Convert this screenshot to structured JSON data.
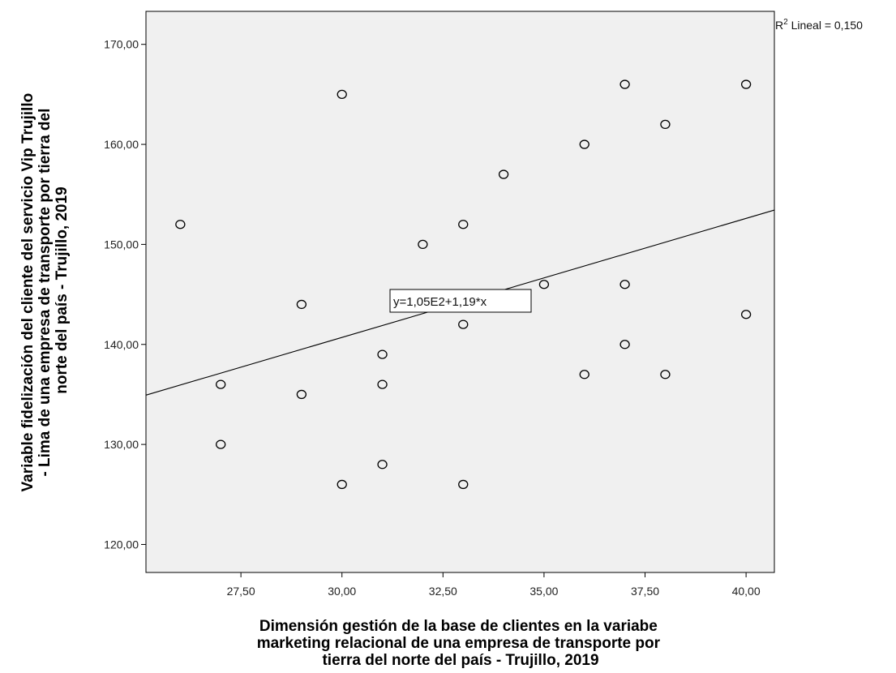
{
  "chart_data": {
    "type": "scatter",
    "xlabel": [
      "Dimensión gestión de la base de clientes en la variabe",
      "marketing relacional de una empresa de transporte por",
      "tierra del norte del país - Trujillo, 2019"
    ],
    "ylabel": [
      "Variable fidelización del cliente del servicio Vip Trujillo",
      "- Lima de una empresa de transporte por tierra del",
      "norte del país - Trujillo, 2019"
    ],
    "xlim": [
      25.15,
      40.7
    ],
    "ylim": [
      117.2,
      173.3
    ],
    "xticks": [
      27.5,
      30.0,
      32.5,
      35.0,
      37.5,
      40.0
    ],
    "xtick_labels": [
      "27,50",
      "30,00",
      "32,50",
      "35,00",
      "37,50",
      "40,00"
    ],
    "yticks": [
      120,
      130,
      140,
      150,
      160,
      170
    ],
    "ytick_labels": [
      "120,00",
      "130,00",
      "140,00",
      "150,00",
      "160,00",
      "170,00"
    ],
    "grid": false,
    "points": [
      {
        "x": 26,
        "y": 152
      },
      {
        "x": 27,
        "y": 136
      },
      {
        "x": 27,
        "y": 130
      },
      {
        "x": 29,
        "y": 144
      },
      {
        "x": 29,
        "y": 135
      },
      {
        "x": 30,
        "y": 165
      },
      {
        "x": 30,
        "y": 126
      },
      {
        "x": 31,
        "y": 139
      },
      {
        "x": 31,
        "y": 136
      },
      {
        "x": 31,
        "y": 128
      },
      {
        "x": 32,
        "y": 150
      },
      {
        "x": 33,
        "y": 152
      },
      {
        "x": 33,
        "y": 142
      },
      {
        "x": 33,
        "y": 126
      },
      {
        "x": 34,
        "y": 157
      },
      {
        "x": 35,
        "y": 146
      },
      {
        "x": 36,
        "y": 160
      },
      {
        "x": 36,
        "y": 137
      },
      {
        "x": 37,
        "y": 166
      },
      {
        "x": 37,
        "y": 146
      },
      {
        "x": 37,
        "y": 140
      },
      {
        "x": 38,
        "y": 162
      },
      {
        "x": 38,
        "y": 137
      },
      {
        "x": 40,
        "y": 166
      },
      {
        "x": 40,
        "y": 143
      }
    ],
    "fit_line": {
      "intercept": 105,
      "slope": 1.19
    },
    "equation_label": "y=1,05E2+1,19*x",
    "r2_prefix": "R",
    "r2_superscript": "2",
    "r2_text": " Lineal = 0,150",
    "colors": {
      "plot_background": "#f0f0f0",
      "axis": "#000000",
      "marker_stroke": "#000000"
    }
  }
}
